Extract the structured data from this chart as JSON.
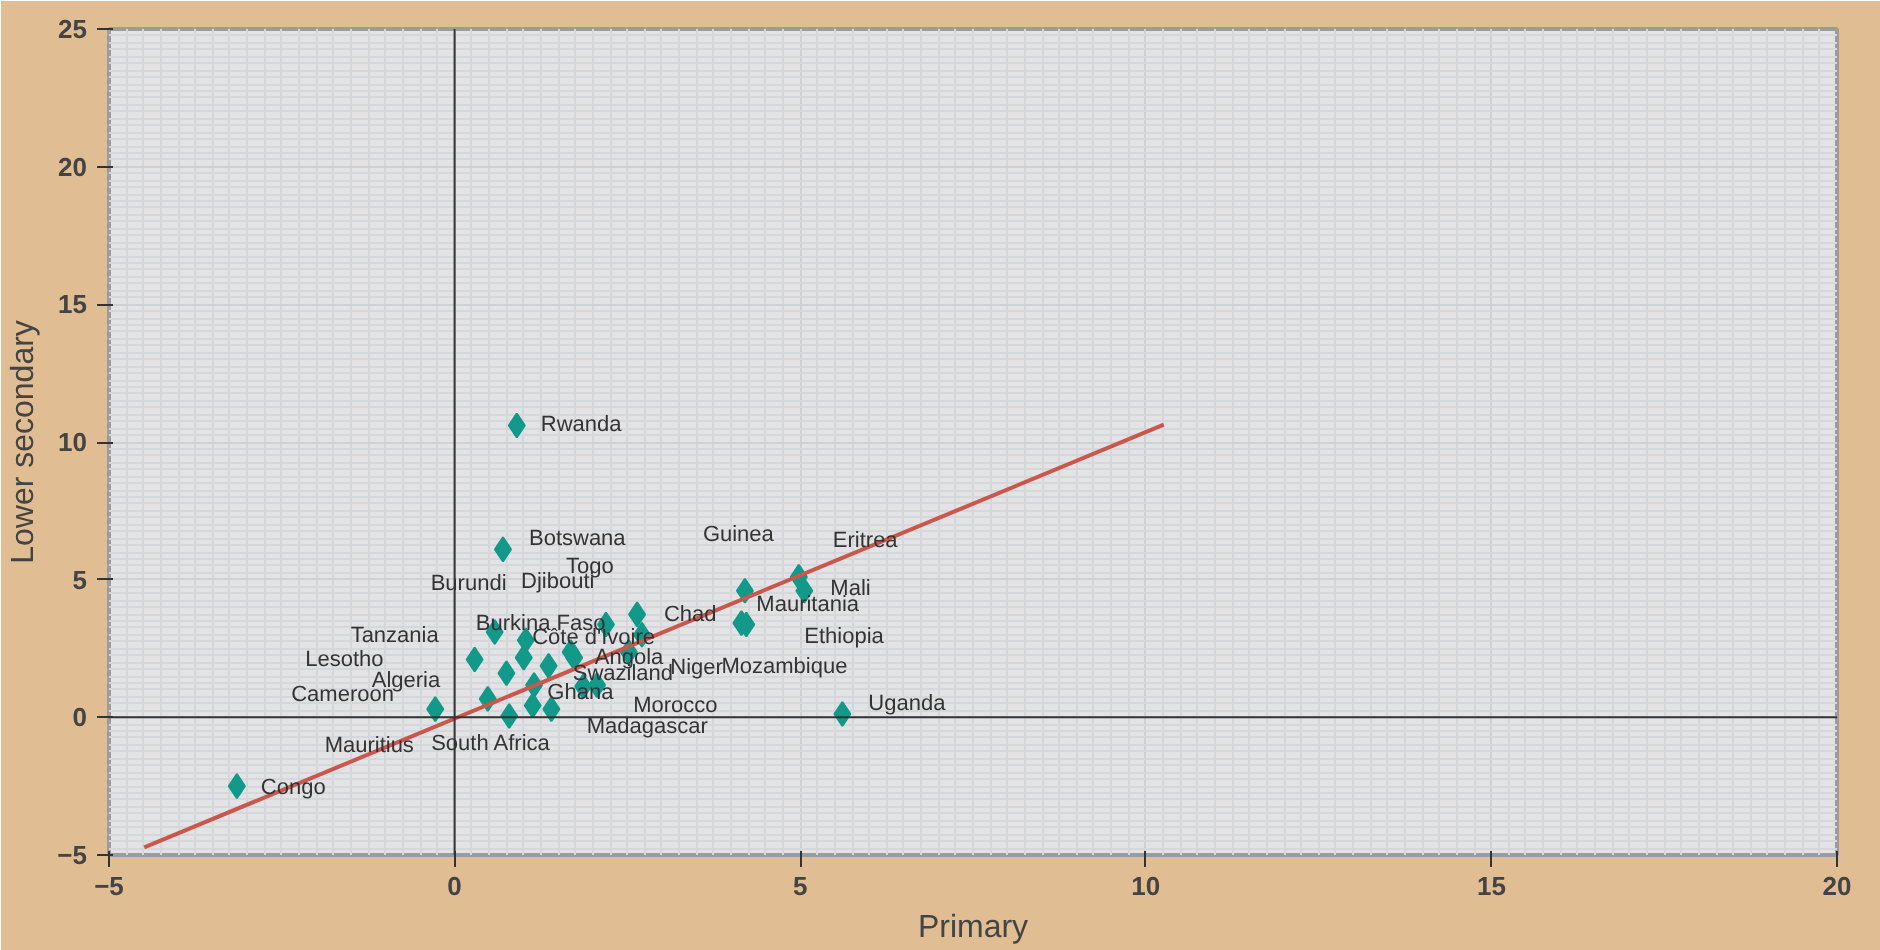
{
  "chart_data": {
    "type": "scatter",
    "xlabel": "Primary",
    "ylabel": "Lower secondary",
    "xlim": [
      -5,
      20
    ],
    "ylim": [
      -5,
      25
    ],
    "xticks": [
      -5,
      0,
      5,
      10,
      15,
      20
    ],
    "yticks": [
      -5,
      0,
      5,
      10,
      15,
      20,
      25
    ],
    "grid": true,
    "series": [
      {
        "color": "#12998a",
        "marker": "diamond",
        "x": [
          0.9,
          0.7,
          -3.15,
          -0.28,
          0.29,
          0.58,
          0.75,
          0.48,
          0.79,
          1.03,
          1.0,
          1.15,
          1.13,
          1.36,
          1.4,
          1.68,
          1.73,
          1.86,
          2.06,
          2.19,
          2.64,
          2.71,
          2.52,
          4.2,
          4.15,
          4.22,
          4.98,
          5.06,
          5.61
        ],
        "values": [
          10.6,
          6.1,
          -2.5,
          0.3,
          2.1,
          3.1,
          1.6,
          0.67,
          0.05,
          2.8,
          2.17,
          1.17,
          0.43,
          1.87,
          0.3,
          2.37,
          2.17,
          1.12,
          1.17,
          3.37,
          3.74,
          3.0,
          2.37,
          4.6,
          3.42,
          3.37,
          5.1,
          4.6,
          0.12
        ]
      },
      {
        "type": "line",
        "color": "#c9574c",
        "x": [
          -4.49,
          10.26
        ],
        "values": [
          -4.72,
          10.63
        ]
      }
    ],
    "annotations": [
      {
        "text": "Rwanda",
        "x": 0.9,
        "y": 10.6
      },
      {
        "text": "Botswana",
        "x": 0.7,
        "y": 6.1
      },
      {
        "text": "Guinea",
        "x": 4.2,
        "y": 4.6
      },
      {
        "text": "Eritrea",
        "x": 4.98,
        "y": 5.1
      },
      {
        "text": "Togo",
        "x": 2.19,
        "y": 3.37
      },
      {
        "text": "Burundi",
        "x": 0.58,
        "y": 3.1
      },
      {
        "text": "Djibouti",
        "x": 2.64,
        "y": 3.74
      },
      {
        "text": "Mali",
        "x": 5.06,
        "y": 4.6
      },
      {
        "text": "Mauritania",
        "x": 5.06,
        "y": 4.6
      },
      {
        "text": "Chad",
        "x": 2.71,
        "y": 3.0
      },
      {
        "text": "Tanzania",
        "x": 0.29,
        "y": 2.1
      },
      {
        "text": "Burkina Faso",
        "x": 1.03,
        "y": 2.8
      },
      {
        "text": "Côte d'Ivoire",
        "x": 1.73,
        "y": 2.17
      },
      {
        "text": "Ethiopia",
        "x": 4.22,
        "y": 3.37
      },
      "Lesotho",
      {
        "text": "Angola",
        "x": 2.52,
        "y": 2.37
      },
      {
        "text": "Algeria",
        "x": 0.48,
        "y": 0.67
      },
      "Niger",
      {
        "text": "Swaziland",
        "x": 1.68,
        "y": 2.37
      },
      {
        "text": "Mozambique",
        "x": 4.15,
        "y": 3.42
      },
      {
        "text": "Cameroon",
        "x": -0.28,
        "y": 0.3
      },
      {
        "text": "Ghana",
        "x": 1.4,
        "y": 0.3
      },
      {
        "text": "Morocco",
        "x": 1.86,
        "y": 1.12
      },
      {
        "text": "Madagascar",
        "x": 1.13,
        "y": 0.43
      },
      {
        "text": "Uganda",
        "x": 5.61,
        "y": 0.12
      },
      "Mauritius",
      {
        "text": "South Africa",
        "x": 0.79,
        "y": 0.05
      },
      {
        "text": "Congo",
        "x": -3.15,
        "y": -2.5
      }
    ]
  }
}
